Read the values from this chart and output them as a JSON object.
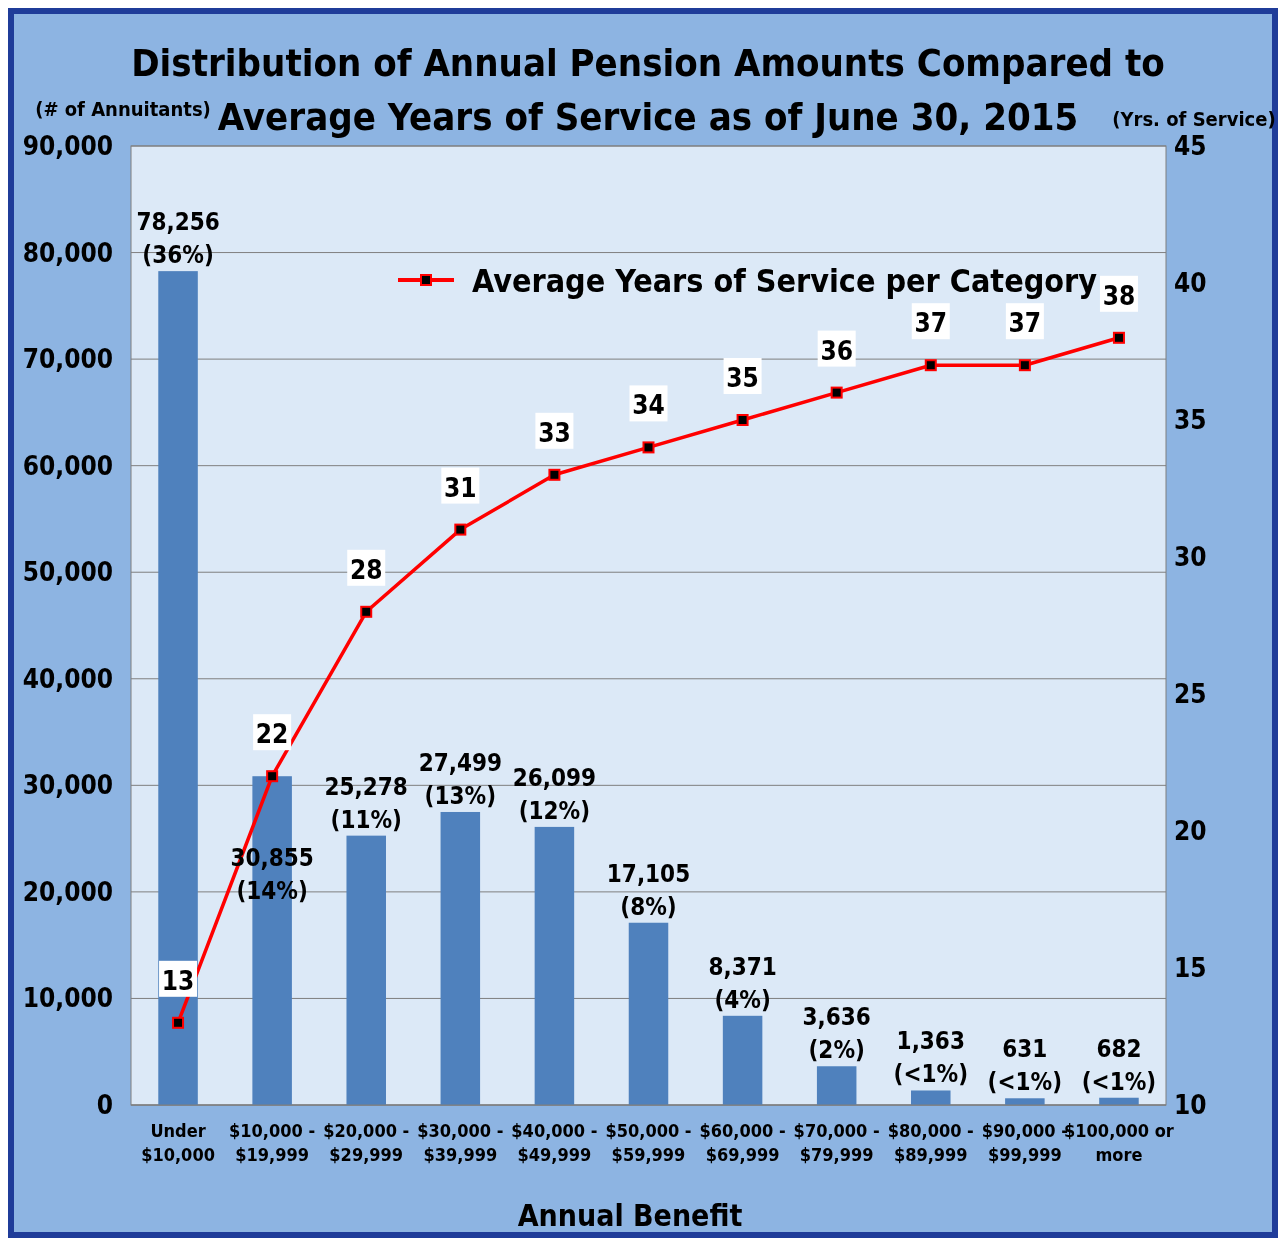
{
  "chart_data": {
    "type": "bar",
    "title": "Distribution of Annual Pension Amounts Compared to\nAverage Years of Service as of June 30, 2015",
    "xlabel": "Annual Benefit",
    "ylabel": "(# of Annuitants)",
    "y2label": "(Yrs. of Service)",
    "categories": [
      "Under\n$10,000",
      "$10,000 -\n$19,999",
      "$20,000 -\n$29,999",
      "$30,000 -\n$39,999",
      "$40,000 -\n$49,999",
      "$50,000 -\n$59,999",
      "$60,000 -\n$69,999",
      "$70,000 -\n$79,999",
      "$80,000 -\n$89,999",
      "$90,000 -\n$99,999",
      "$100,000 or\nmore"
    ],
    "series": [
      {
        "color": "#4f81bd",
        "values": [
          78256,
          30855,
          25278,
          27499,
          26099,
          17105,
          8371,
          3636,
          1363,
          631,
          682
        ],
        "value_labels": [
          "78,256\n(36%)",
          "30,855\n(14%)",
          "25,278\n(11%)",
          "27,499\n(13%)",
          "26,099\n(12%)",
          "17,105\n(8%)",
          "8,371\n(4%)",
          "3,636\n(2%)",
          "1,363\n(<1%)",
          "631\n(<1%)",
          "682\n(<1%)"
        ]
      },
      {
        "type": "line",
        "name": "Average Years of Service per Category",
        "axis": "y2",
        "color": "#ff0000",
        "marker": "square",
        "values": [
          13,
          22,
          28,
          31,
          33,
          34,
          35,
          36,
          37,
          37,
          38
        ],
        "value_labels": [
          "13",
          "22",
          "28",
          "31",
          "33",
          "34",
          "35",
          "36",
          "37",
          "37",
          "38"
        ]
      }
    ],
    "ylim": [
      0,
      90000
    ],
    "yticks": [
      {
        "value": 0,
        "label": "0"
      },
      {
        "value": 10000,
        "label": "10,000"
      },
      {
        "value": 20000,
        "label": "20,000"
      },
      {
        "value": 30000,
        "label": "30,000"
      },
      {
        "value": 40000,
        "label": "40,000"
      },
      {
        "value": 50000,
        "label": "50,000"
      },
      {
        "value": 60000,
        "label": "60,000"
      },
      {
        "value": 70000,
        "label": "70,000"
      },
      {
        "value": 80000,
        "label": "80,000"
      },
      {
        "value": 90000,
        "label": "90,000"
      }
    ],
    "y2lim": [
      10,
      45
    ],
    "y2ticks": [
      10,
      15,
      20,
      25,
      30,
      35,
      40,
      45
    ],
    "grid": "y",
    "legend": "top"
  }
}
